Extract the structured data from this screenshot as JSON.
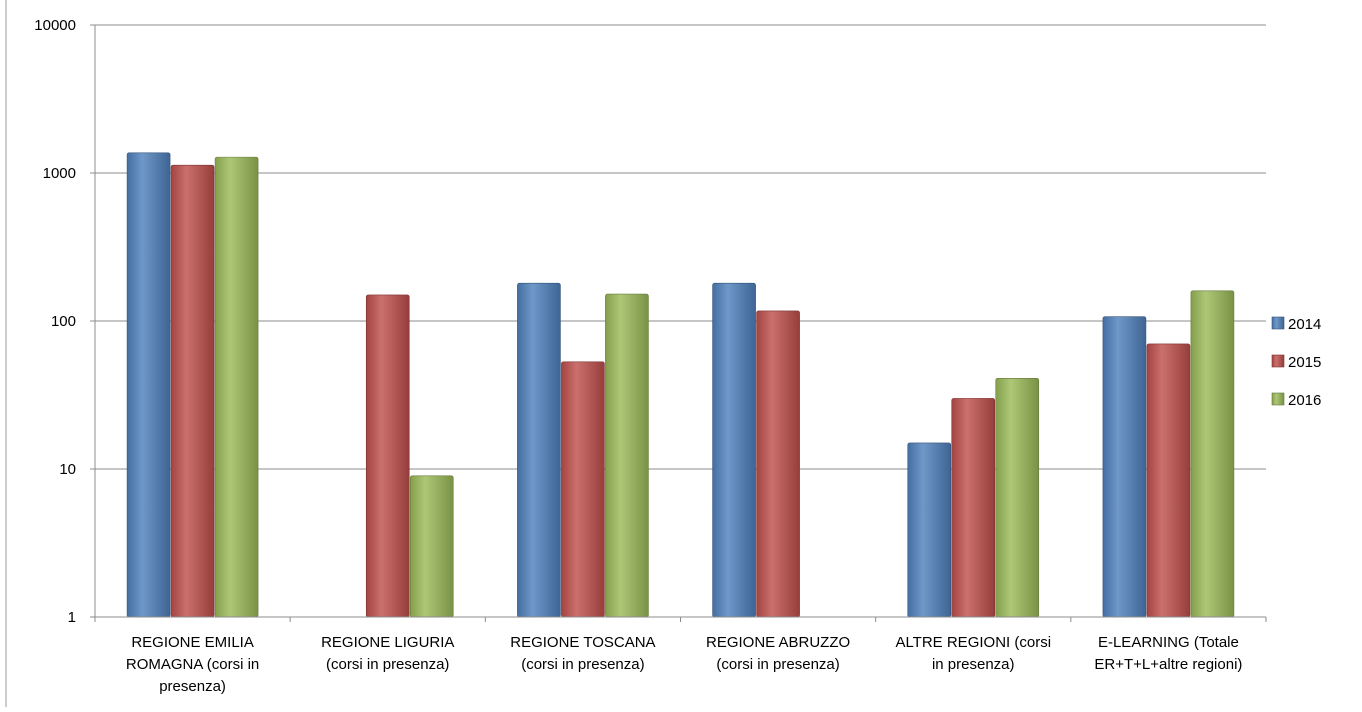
{
  "chart_data": {
    "type": "bar",
    "scale": "log",
    "ylim": [
      1,
      10000
    ],
    "yticks": [
      "1",
      "10",
      "100",
      "1000",
      "10000"
    ],
    "ytick_values": [
      1,
      10,
      100,
      1000,
      10000
    ],
    "grid": true,
    "legend_position": "right",
    "categories": [
      [
        "REGIONE EMILIA",
        "ROMAGNA (corsi in",
        "presenza)"
      ],
      [
        "REGIONE LIGURIA",
        "(corsi in presenza)"
      ],
      [
        "REGIONE TOSCANA",
        "(corsi in presenza)"
      ],
      [
        "REGIONE ABRUZZO",
        "(corsi in presenza)"
      ],
      [
        "ALTRE REGIONI (corsi",
        "in presenza)"
      ],
      [
        "E-LEARNING (Totale",
        "ER+T+L+altre regioni)"
      ]
    ],
    "series": [
      {
        "name": "2014",
        "color": "#4F81BD",
        "values": [
          1370,
          null,
          180,
          180,
          15,
          107
        ]
      },
      {
        "name": "2015",
        "color": "#C0504D",
        "values": [
          1130,
          150,
          53,
          117,
          30,
          70
        ]
      },
      {
        "name": "2016",
        "color": "#9BBB59",
        "values": [
          1280,
          9,
          152,
          null,
          41,
          160
        ]
      }
    ]
  }
}
